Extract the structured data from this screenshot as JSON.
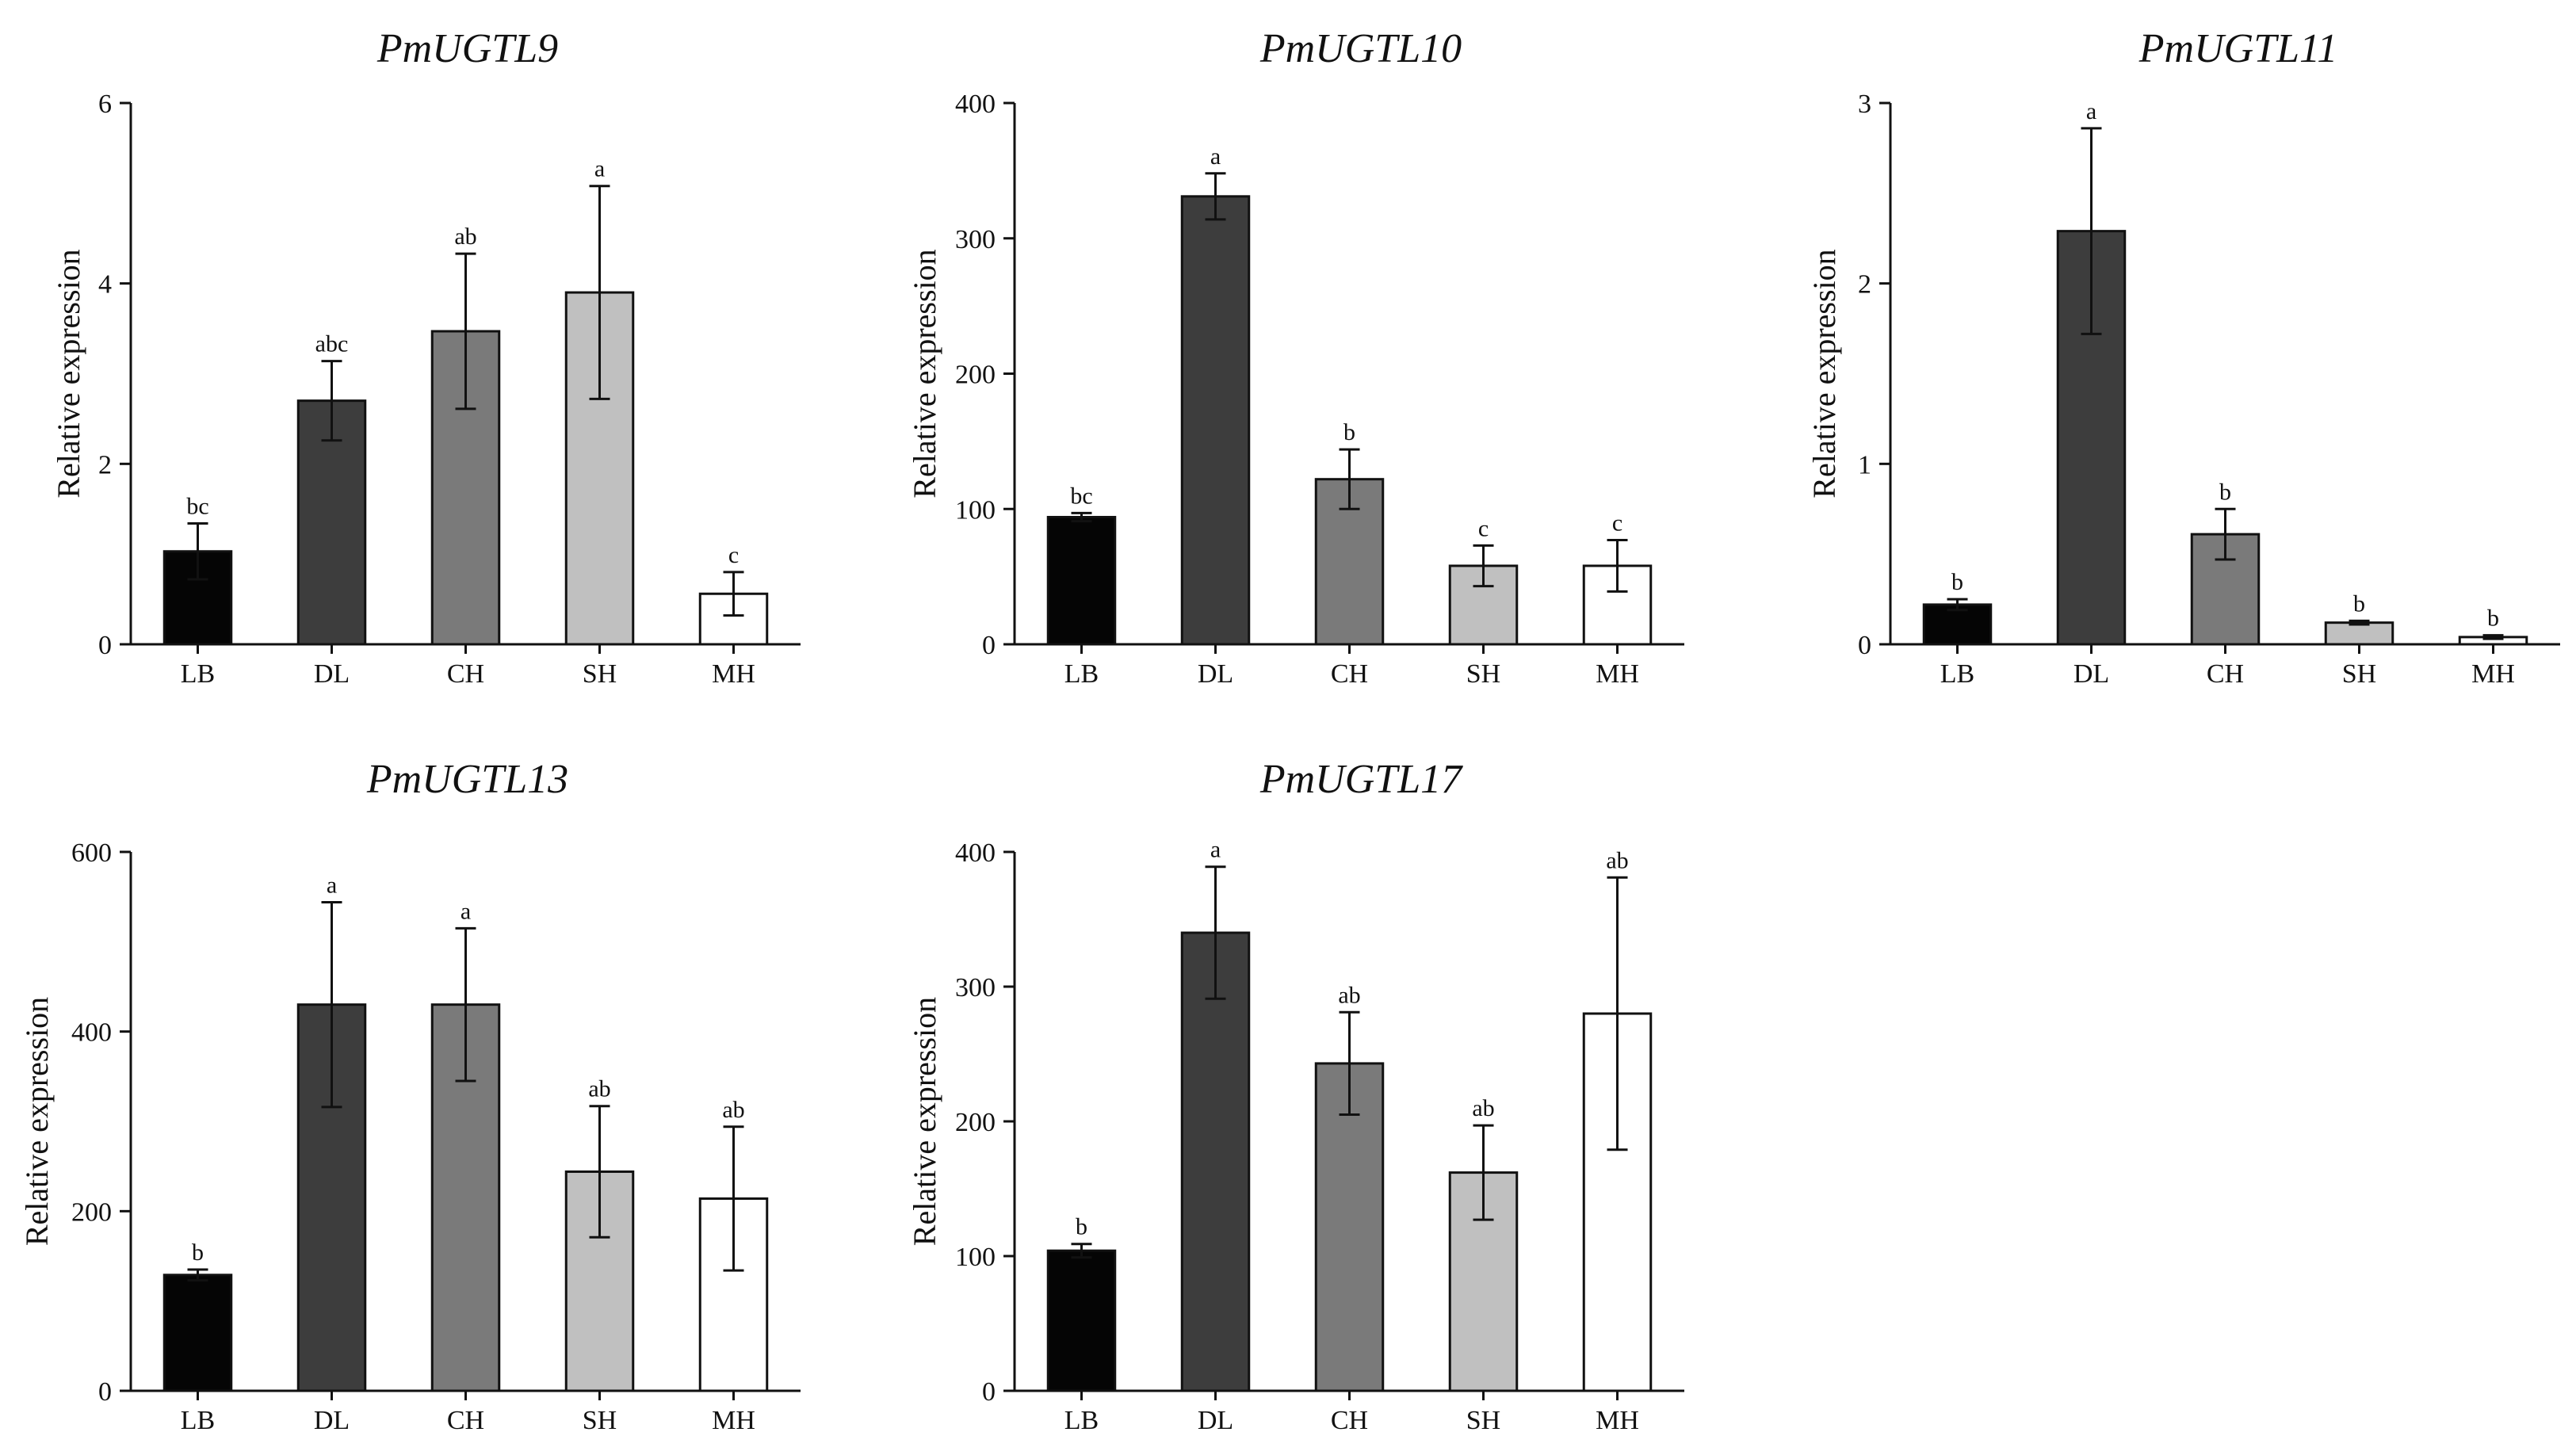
{
  "chart_data": [
    {
      "type": "bar",
      "title": "PmUGTL9",
      "xlabel": "",
      "ylabel": "Relative expression",
      "categories": [
        "LB",
        "DL",
        "CH",
        "SH",
        "MH"
      ],
      "values": [
        1.03,
        2.7,
        3.47,
        3.9,
        0.56
      ],
      "errors": [
        0.31,
        0.44,
        0.86,
        1.18,
        0.24
      ],
      "significance": [
        "bc",
        "abc",
        "ab",
        "a",
        "c"
      ],
      "ylim": [
        0,
        6
      ],
      "yticks": [
        0,
        2,
        4,
        6
      ]
    },
    {
      "type": "bar",
      "title": "PmUGTL10",
      "xlabel": "",
      "ylabel": "Relative expression",
      "categories": [
        "LB",
        "DL",
        "CH",
        "SH",
        "MH"
      ],
      "values": [
        94,
        331,
        122,
        58,
        58
      ],
      "errors": [
        3,
        17,
        22,
        15,
        19
      ],
      "significance": [
        "bc",
        "a",
        "b",
        "c",
        "c"
      ],
      "ylim": [
        0,
        400
      ],
      "yticks": [
        0,
        100,
        200,
        300,
        400
      ]
    },
    {
      "type": "bar",
      "title": "PmUGTL11",
      "xlabel": "",
      "ylabel": "Relative expression",
      "categories": [
        "LB",
        "DL",
        "CH",
        "SH",
        "MH"
      ],
      "values": [
        0.22,
        2.29,
        0.61,
        0.12,
        0.04
      ],
      "errors": [
        0.03,
        0.57,
        0.14,
        0.01,
        0.01
      ],
      "significance": [
        "b",
        "a",
        "b",
        "b",
        "b"
      ],
      "ylim": [
        0,
        3
      ],
      "yticks": [
        0,
        1,
        2,
        3
      ]
    },
    {
      "type": "bar",
      "title": "PmUGTL13",
      "xlabel": "",
      "ylabel": "Relative expression",
      "categories": [
        "LB",
        "DL",
        "CH",
        "SH",
        "MH"
      ],
      "values": [
        129,
        430,
        430,
        244,
        214
      ],
      "errors": [
        6,
        114,
        85,
        73,
        80
      ],
      "significance": [
        "b",
        "a",
        "a",
        "ab",
        "ab"
      ],
      "ylim": [
        0,
        600
      ],
      "yticks": [
        0,
        200,
        400,
        600
      ]
    },
    {
      "type": "bar",
      "title": "PmUGTL17",
      "xlabel": "",
      "ylabel": "Relative expression",
      "categories": [
        "LB",
        "DL",
        "CH",
        "SH",
        "MH"
      ],
      "values": [
        104,
        340,
        243,
        162,
        280
      ],
      "errors": [
        5,
        49,
        38,
        35,
        101
      ],
      "significance": [
        "b",
        "a",
        "ab",
        "ab",
        "ab"
      ],
      "ylim": [
        0,
        400
      ],
      "yticks": [
        0,
        100,
        200,
        300,
        400
      ]
    }
  ],
  "colors": {
    "bars": [
      "#050505",
      "#3d3d3d",
      "#7a7a7a",
      "#c0c0c0",
      "#ffffff"
    ],
    "axis": "#111111"
  }
}
